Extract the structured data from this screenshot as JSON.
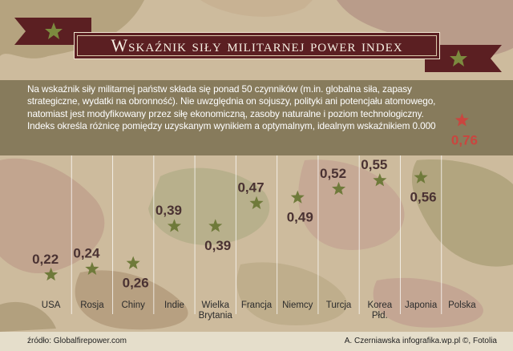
{
  "title": "Wskaźnik siły militarnej power index",
  "description": "Na wskaźnik siły militarnej państw składa się ponad 50 czynników (m.in. globalna siła, zapasy strategiczne, wydatki na obronność). Nie uwzględnia on sojuszy, polityki ani potencjału atomowego, natomiast jest modyfikowany przez siłę ekonomiczną, zasoby naturalne i poziom technologiczny. Indeks określa różnicę pomiędzy uzyskanym wynikiem a optymalnym, idealnym wskaźnikiem 0.000",
  "source": "źródło: Globalfirepower.com",
  "credit": "A. Czerniawska infografika.wp.pl ©, Fotolia",
  "colors": {
    "banner": "#5b1f22",
    "star_normal": "#6f7a3a",
    "star_highlight": "#c9463f",
    "value_normal": "#4a3232",
    "value_highlight": "#c9463f"
  },
  "chart_data": {
    "type": "scatter",
    "title": "Wskaźnik siły militarnej power index",
    "categories": [
      "USA",
      "Rosja",
      "Chiny",
      "Indie",
      "Wielka Brytania",
      "Francja",
      "Niemcy",
      "Turcja",
      "Korea Płd.",
      "Japonia",
      "Polska"
    ],
    "category_labels": [
      [
        "USA"
      ],
      [
        "Rosja"
      ],
      [
        "Chiny"
      ],
      [
        "Indie"
      ],
      [
        "Wielka",
        "Brytania"
      ],
      [
        "Francja"
      ],
      [
        "Niemcy"
      ],
      [
        "Turcja"
      ],
      [
        "Korea",
        "Płd."
      ],
      [
        "Japonia"
      ],
      [
        "Polska"
      ]
    ],
    "values": [
      0.22,
      0.24,
      0.26,
      0.39,
      0.39,
      0.47,
      0.49,
      0.52,
      0.55,
      0.56,
      0.76
    ],
    "value_labels": [
      "0,22",
      "0,24",
      "0,26",
      "0,39",
      "0,39",
      "0,47",
      "0,49",
      "0,52",
      "0,55",
      "0,56",
      "0,76"
    ],
    "label_position": [
      "above",
      "above",
      "below",
      "above",
      "below",
      "above",
      "below",
      "above",
      "above",
      "below",
      "below"
    ],
    "highlight": [
      false,
      false,
      false,
      false,
      false,
      false,
      false,
      false,
      false,
      false,
      true
    ],
    "ylim": [
      0.2,
      0.8
    ],
    "grid": "vertical separators",
    "legend": "none",
    "xlabel": "",
    "ylabel": ""
  }
}
